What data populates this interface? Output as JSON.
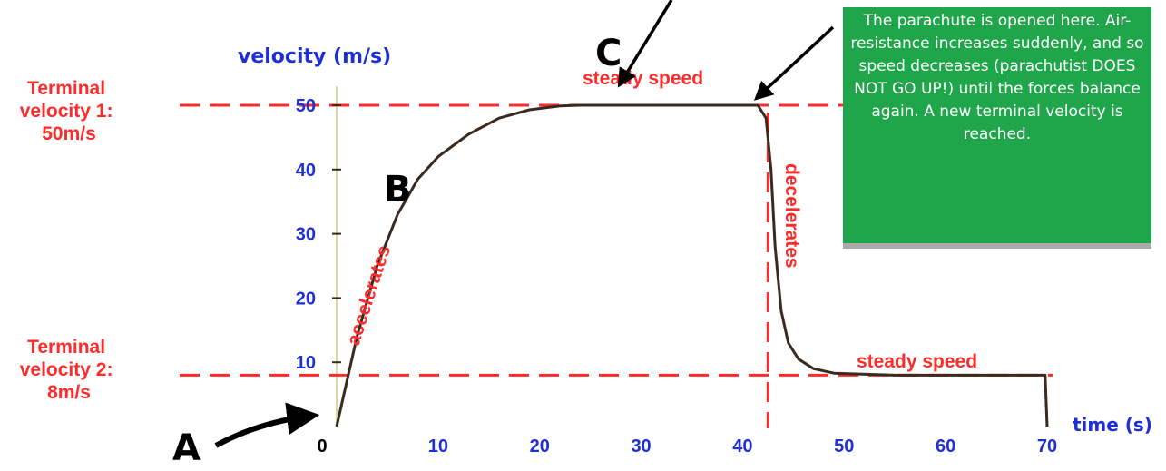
{
  "chart_data": {
    "type": "line",
    "ylabel": "velocity (m/s)",
    "xlabel": "time (s)",
    "xlim": [
      0,
      70
    ],
    "ylim": [
      0,
      50
    ],
    "x_ticks": [
      0,
      10,
      20,
      30,
      40,
      50,
      60,
      70
    ],
    "y_ticks": [
      10,
      20,
      30,
      40,
      50
    ],
    "series": [
      {
        "x": [
          0,
          2,
          4,
          6,
          8,
          10,
          13,
          16,
          19,
          22,
          24,
          30,
          36,
          41.5,
          42.3,
          42.8,
          43.2,
          43.8,
          44.5,
          45.5,
          47,
          49,
          55,
          65,
          69.8,
          70
        ],
        "y": [
          0,
          14,
          25,
          33,
          38.5,
          42,
          45.5,
          48,
          49.3,
          49.9,
          50,
          50,
          50,
          50,
          48,
          40,
          28,
          18,
          13,
          10.5,
          9,
          8.3,
          8,
          8,
          8,
          0
        ]
      }
    ],
    "annotations": [
      {
        "text": "accelerates"
      },
      {
        "text": "steady speed"
      },
      {
        "text": "decelerates"
      },
      {
        "text": "steady speed"
      },
      {
        "text": "A"
      },
      {
        "text": "B"
      },
      {
        "text": "C"
      }
    ],
    "reference_lines": [
      {
        "axis": "y",
        "value": 50,
        "label_lines": [
          "Terminal",
          "velocity 1:",
          "50m/s"
        ]
      },
      {
        "axis": "y",
        "value": 8,
        "label_lines": [
          "Terminal",
          "velocity 2:",
          "8m/s"
        ]
      },
      {
        "axis": "x",
        "value": 42.5
      }
    ],
    "callout": "The parachute is opened here. Air-resistance increases suddenly, and so speed decreases (parachutist DOES NOT GO UP!) until the forces balance again. A new terminal velocity is reached."
  },
  "colors": {
    "curve": "#3b2a1e",
    "reference": "#ff2a2a",
    "tick_y": "#1f2fd6",
    "tick_x": "#1f2fd6",
    "tick_zero": "#000000",
    "callout_bg": "#1fa64a"
  }
}
